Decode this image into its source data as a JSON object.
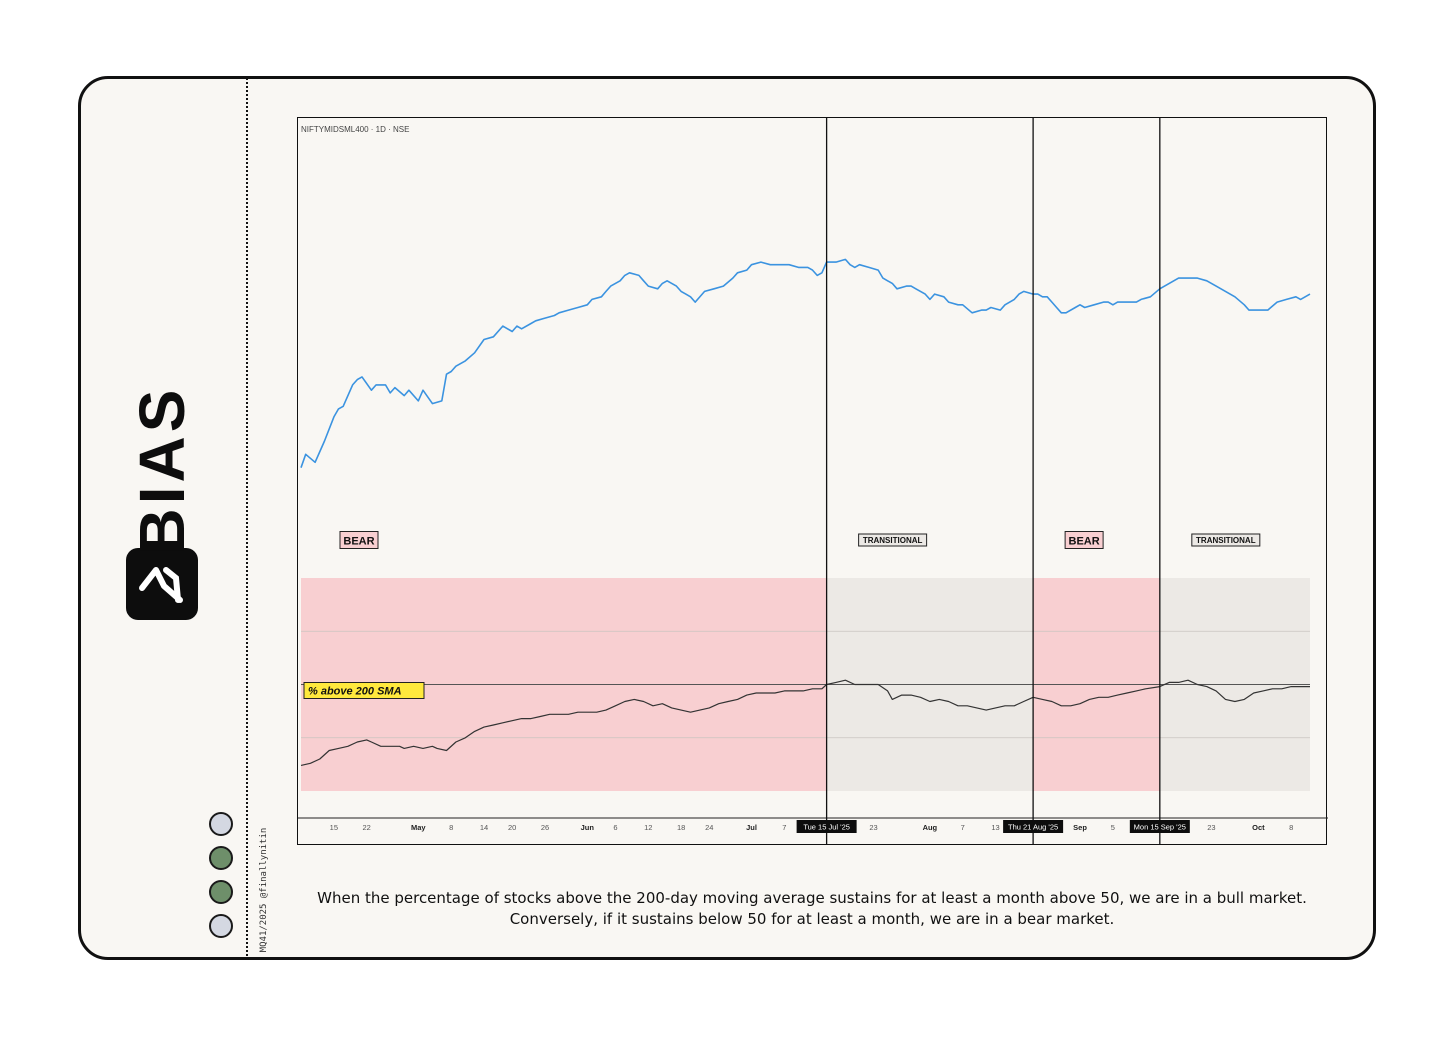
{
  "brand": {
    "name": "BIAS",
    "credit": "MQ41/2025 @finallynitin"
  },
  "dots": [
    {
      "color": "#d4d8e2"
    },
    {
      "color": "#6e8f6a"
    },
    {
      "color": "#6e8f6a"
    },
    {
      "color": "#d4d8e2"
    }
  ],
  "caption": "When the percentage of stocks above the 200-day moving average sustains for at least a month above 50, we are in a bull market. Conversely, if it sustains below 50 for at least a month, we are in a bear market.",
  "chart_data": {
    "type": "line",
    "title": "NIFTYMIDSML400 · 1D · NSE",
    "indicator_label": "% above 200 SMA",
    "colors": {
      "price": "#3b93e0",
      "breadth": "#333333",
      "bear": "#f8cfd1",
      "transitional": "#ece9e5",
      "label_bg": "#ffe93d"
    },
    "regimes": [
      {
        "label": "BEAR",
        "start": 0,
        "end": 112
      },
      {
        "label": "TRANSITIONAL",
        "start": 112,
        "end": 156
      },
      {
        "label": "BEAR",
        "start": 156,
        "end": 183
      },
      {
        "label": "TRANSITIONAL",
        "start": 183,
        "end": 215
      }
    ],
    "markers": [
      {
        "label": "Tue 15 Jul '25",
        "x": 112
      },
      {
        "label": "Thu 21 Aug '25",
        "x": 156
      },
      {
        "label": "Mon 15 Sep '25",
        "x": 183
      }
    ],
    "x_ticks": [
      {
        "label": "15",
        "x": 7,
        "bold": false
      },
      {
        "label": "22",
        "x": 14,
        "bold": false
      },
      {
        "label": "May",
        "x": 25,
        "bold": true
      },
      {
        "label": "8",
        "x": 32,
        "bold": false
      },
      {
        "label": "14",
        "x": 39,
        "bold": false
      },
      {
        "label": "20",
        "x": 45,
        "bold": false
      },
      {
        "label": "26",
        "x": 52,
        "bold": false
      },
      {
        "label": "Jun",
        "x": 61,
        "bold": true
      },
      {
        "label": "6",
        "x": 67,
        "bold": false
      },
      {
        "label": "12",
        "x": 74,
        "bold": false
      },
      {
        "label": "18",
        "x": 81,
        "bold": false
      },
      {
        "label": "24",
        "x": 87,
        "bold": false
      },
      {
        "label": "Jul",
        "x": 96,
        "bold": true
      },
      {
        "label": "7",
        "x": 103,
        "bold": false
      },
      {
        "label": "23",
        "x": 122,
        "bold": false
      },
      {
        "label": "Aug",
        "x": 134,
        "bold": true
      },
      {
        "label": "7",
        "x": 141,
        "bold": false
      },
      {
        "label": "13",
        "x": 148,
        "bold": false
      },
      {
        "label": "Sep",
        "x": 166,
        "bold": true
      },
      {
        "label": "5",
        "x": 173,
        "bold": false
      },
      {
        "label": "23",
        "x": 194,
        "bold": false
      },
      {
        "label": "Oct",
        "x": 204,
        "bold": true
      },
      {
        "label": "8",
        "x": 211,
        "bold": false
      }
    ],
    "x_range": [
      0,
      215
    ],
    "price_range": [
      0,
      100
    ],
    "breadth_range": [
      0,
      100
    ],
    "price": [
      [
        0,
        2
      ],
      [
        1,
        7
      ],
      [
        3,
        4
      ],
      [
        5,
        12
      ],
      [
        7,
        21
      ],
      [
        8,
        24
      ],
      [
        9,
        25
      ],
      [
        11,
        33
      ],
      [
        12,
        35
      ],
      [
        13,
        36
      ],
      [
        15,
        31
      ],
      [
        16,
        33
      ],
      [
        18,
        33
      ],
      [
        19,
        30
      ],
      [
        20,
        32
      ],
      [
        22,
        29
      ],
      [
        23,
        31
      ],
      [
        25,
        27
      ],
      [
        26,
        31
      ],
      [
        28,
        26
      ],
      [
        30,
        27
      ],
      [
        31,
        37
      ],
      [
        32,
        38
      ],
      [
        33,
        40
      ],
      [
        35,
        42
      ],
      [
        37,
        45
      ],
      [
        39,
        50
      ],
      [
        41,
        51
      ],
      [
        43,
        55
      ],
      [
        45,
        53
      ],
      [
        46,
        55
      ],
      [
        47,
        54
      ],
      [
        49,
        56
      ],
      [
        50,
        57
      ],
      [
        52,
        58
      ],
      [
        54,
        59
      ],
      [
        55,
        60
      ],
      [
        57,
        61
      ],
      [
        59,
        62
      ],
      [
        61,
        63
      ],
      [
        62,
        65
      ],
      [
        64,
        66
      ],
      [
        65,
        68
      ],
      [
        66,
        70
      ],
      [
        68,
        72
      ],
      [
        69,
        74
      ],
      [
        70,
        75
      ],
      [
        72,
        74
      ],
      [
        73,
        72
      ],
      [
        74,
        70
      ],
      [
        76,
        69
      ],
      [
        77,
        71
      ],
      [
        78,
        72
      ],
      [
        80,
        70
      ],
      [
        81,
        68
      ],
      [
        82,
        67
      ],
      [
        83,
        66
      ],
      [
        84,
        64
      ],
      [
        86,
        68
      ],
      [
        88,
        69
      ],
      [
        90,
        70
      ],
      [
        92,
        73
      ],
      [
        93,
        75
      ],
      [
        95,
        76
      ],
      [
        96,
        78
      ],
      [
        98,
        79
      ],
      [
        100,
        78
      ],
      [
        102,
        78
      ],
      [
        104,
        78
      ],
      [
        106,
        77
      ],
      [
        108,
        77
      ],
      [
        109,
        76
      ],
      [
        110,
        74
      ],
      [
        111,
        75
      ],
      [
        112,
        79
      ],
      [
        114,
        79
      ],
      [
        116,
        80
      ],
      [
        117,
        78
      ],
      [
        118,
        77
      ],
      [
        119,
        78
      ],
      [
        121,
        77
      ],
      [
        123,
        76
      ],
      [
        124,
        73
      ],
      [
        125,
        72
      ],
      [
        126,
        71
      ],
      [
        127,
        69
      ],
      [
        129,
        70
      ],
      [
        130,
        70
      ],
      [
        131,
        69
      ],
      [
        133,
        67
      ],
      [
        134,
        65
      ],
      [
        135,
        67
      ],
      [
        137,
        66
      ],
      [
        138,
        64
      ],
      [
        140,
        63
      ],
      [
        141,
        63
      ],
      [
        143,
        60
      ],
      [
        145,
        61
      ],
      [
        146,
        61
      ],
      [
        147,
        62
      ],
      [
        149,
        61
      ],
      [
        150,
        63
      ],
      [
        152,
        65
      ],
      [
        153,
        67
      ],
      [
        154,
        68
      ],
      [
        156,
        67
      ],
      [
        157,
        67
      ],
      [
        158,
        66
      ],
      [
        159,
        66
      ],
      [
        160,
        64
      ],
      [
        161,
        62
      ],
      [
        162,
        60
      ],
      [
        163,
        60
      ],
      [
        165,
        62
      ],
      [
        166,
        63
      ],
      [
        167,
        62
      ],
      [
        169,
        63
      ],
      [
        171,
        64
      ],
      [
        172,
        64
      ],
      [
        173,
        63
      ],
      [
        174,
        64
      ],
      [
        176,
        64
      ],
      [
        178,
        64
      ],
      [
        179,
        65
      ],
      [
        181,
        66
      ],
      [
        183,
        69
      ],
      [
        185,
        71
      ],
      [
        187,
        73
      ],
      [
        189,
        73
      ],
      [
        191,
        73
      ],
      [
        193,
        72
      ],
      [
        195,
        70
      ],
      [
        197,
        68
      ],
      [
        199,
        66
      ],
      [
        201,
        63
      ],
      [
        202,
        61
      ],
      [
        204,
        61
      ],
      [
        206,
        61
      ],
      [
        208,
        64
      ],
      [
        210,
        65
      ],
      [
        212,
        66
      ],
      [
        213,
        65
      ],
      [
        215,
        67
      ]
    ],
    "breadth": [
      [
        0,
        12
      ],
      [
        2,
        13
      ],
      [
        4,
        15
      ],
      [
        6,
        19
      ],
      [
        8,
        20
      ],
      [
        10,
        21
      ],
      [
        12,
        23
      ],
      [
        14,
        24
      ],
      [
        15,
        23
      ],
      [
        17,
        21
      ],
      [
        19,
        21
      ],
      [
        21,
        21
      ],
      [
        22,
        20
      ],
      [
        24,
        21
      ],
      [
        26,
        20
      ],
      [
        28,
        21
      ],
      [
        29,
        20
      ],
      [
        31,
        19
      ],
      [
        33,
        23
      ],
      [
        35,
        25
      ],
      [
        37,
        28
      ],
      [
        39,
        30
      ],
      [
        41,
        31
      ],
      [
        43,
        32
      ],
      [
        45,
        33
      ],
      [
        47,
        34
      ],
      [
        49,
        34
      ],
      [
        51,
        35
      ],
      [
        53,
        36
      ],
      [
        55,
        36
      ],
      [
        57,
        36
      ],
      [
        59,
        37
      ],
      [
        61,
        37
      ],
      [
        63,
        37
      ],
      [
        65,
        38
      ],
      [
        67,
        40
      ],
      [
        69,
        42
      ],
      [
        71,
        43
      ],
      [
        73,
        42
      ],
      [
        75,
        40
      ],
      [
        77,
        41
      ],
      [
        79,
        39
      ],
      [
        81,
        38
      ],
      [
        83,
        37
      ],
      [
        85,
        38
      ],
      [
        87,
        39
      ],
      [
        89,
        41
      ],
      [
        91,
        42
      ],
      [
        93,
        43
      ],
      [
        95,
        45
      ],
      [
        97,
        46
      ],
      [
        99,
        46
      ],
      [
        101,
        46
      ],
      [
        103,
        47
      ],
      [
        105,
        47
      ],
      [
        107,
        47
      ],
      [
        109,
        48
      ],
      [
        111,
        48
      ],
      [
        112,
        50
      ],
      [
        114,
        51
      ],
      [
        116,
        52
      ],
      [
        118,
        50
      ],
      [
        121,
        50
      ],
      [
        123,
        50
      ],
      [
        125,
        47
      ],
      [
        126,
        43
      ],
      [
        128,
        45
      ],
      [
        130,
        45
      ],
      [
        132,
        44
      ],
      [
        134,
        42
      ],
      [
        136,
        43
      ],
      [
        138,
        42
      ],
      [
        140,
        40
      ],
      [
        142,
        40
      ],
      [
        144,
        39
      ],
      [
        146,
        38
      ],
      [
        148,
        39
      ],
      [
        150,
        40
      ],
      [
        152,
        40
      ],
      [
        154,
        42
      ],
      [
        156,
        44
      ],
      [
        158,
        43
      ],
      [
        160,
        42
      ],
      [
        162,
        40
      ],
      [
        164,
        40
      ],
      [
        166,
        41
      ],
      [
        168,
        43
      ],
      [
        170,
        44
      ],
      [
        172,
        44
      ],
      [
        174,
        45
      ],
      [
        176,
        46
      ],
      [
        178,
        47
      ],
      [
        180,
        48
      ],
      [
        183,
        49
      ],
      [
        185,
        51
      ],
      [
        187,
        51
      ],
      [
        189,
        52
      ],
      [
        191,
        50
      ],
      [
        193,
        49
      ],
      [
        195,
        47
      ],
      [
        197,
        43
      ],
      [
        199,
        42
      ],
      [
        201,
        43
      ],
      [
        203,
        46
      ],
      [
        205,
        47
      ],
      [
        207,
        48
      ],
      [
        209,
        48
      ],
      [
        211,
        49
      ],
      [
        215,
        49
      ]
    ]
  }
}
